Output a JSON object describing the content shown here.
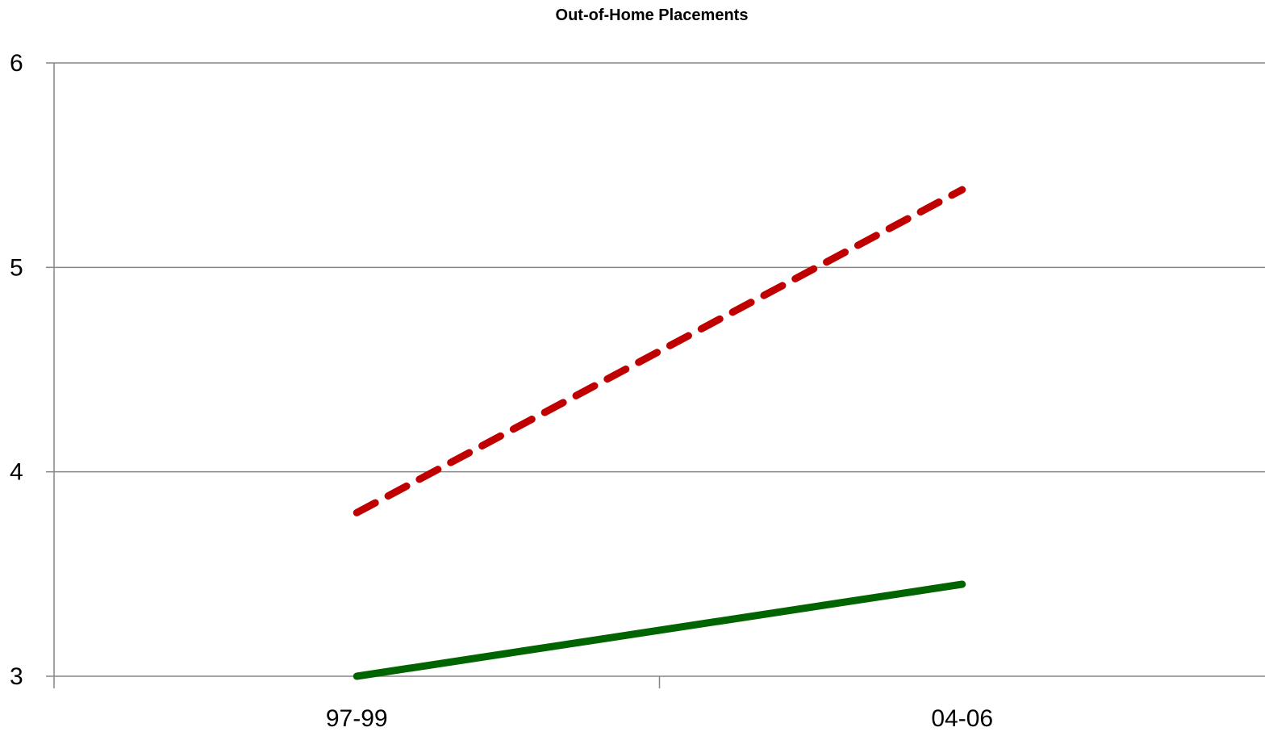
{
  "chart_data": {
    "type": "line",
    "title": "Out-of-Home Placements",
    "xlabel": "",
    "ylabel": "",
    "categories": [
      "97-99",
      "04-06"
    ],
    "ylim": [
      3,
      6
    ],
    "yticks": [
      3,
      4,
      5,
      6
    ],
    "grid": true,
    "legend": "none",
    "series": [
      {
        "values": [
          3.8,
          5.38
        ],
        "color": "#c00000",
        "style": "dashed"
      },
      {
        "values": [
          3.0,
          3.45
        ],
        "color": "#006400",
        "style": "solid"
      }
    ]
  }
}
